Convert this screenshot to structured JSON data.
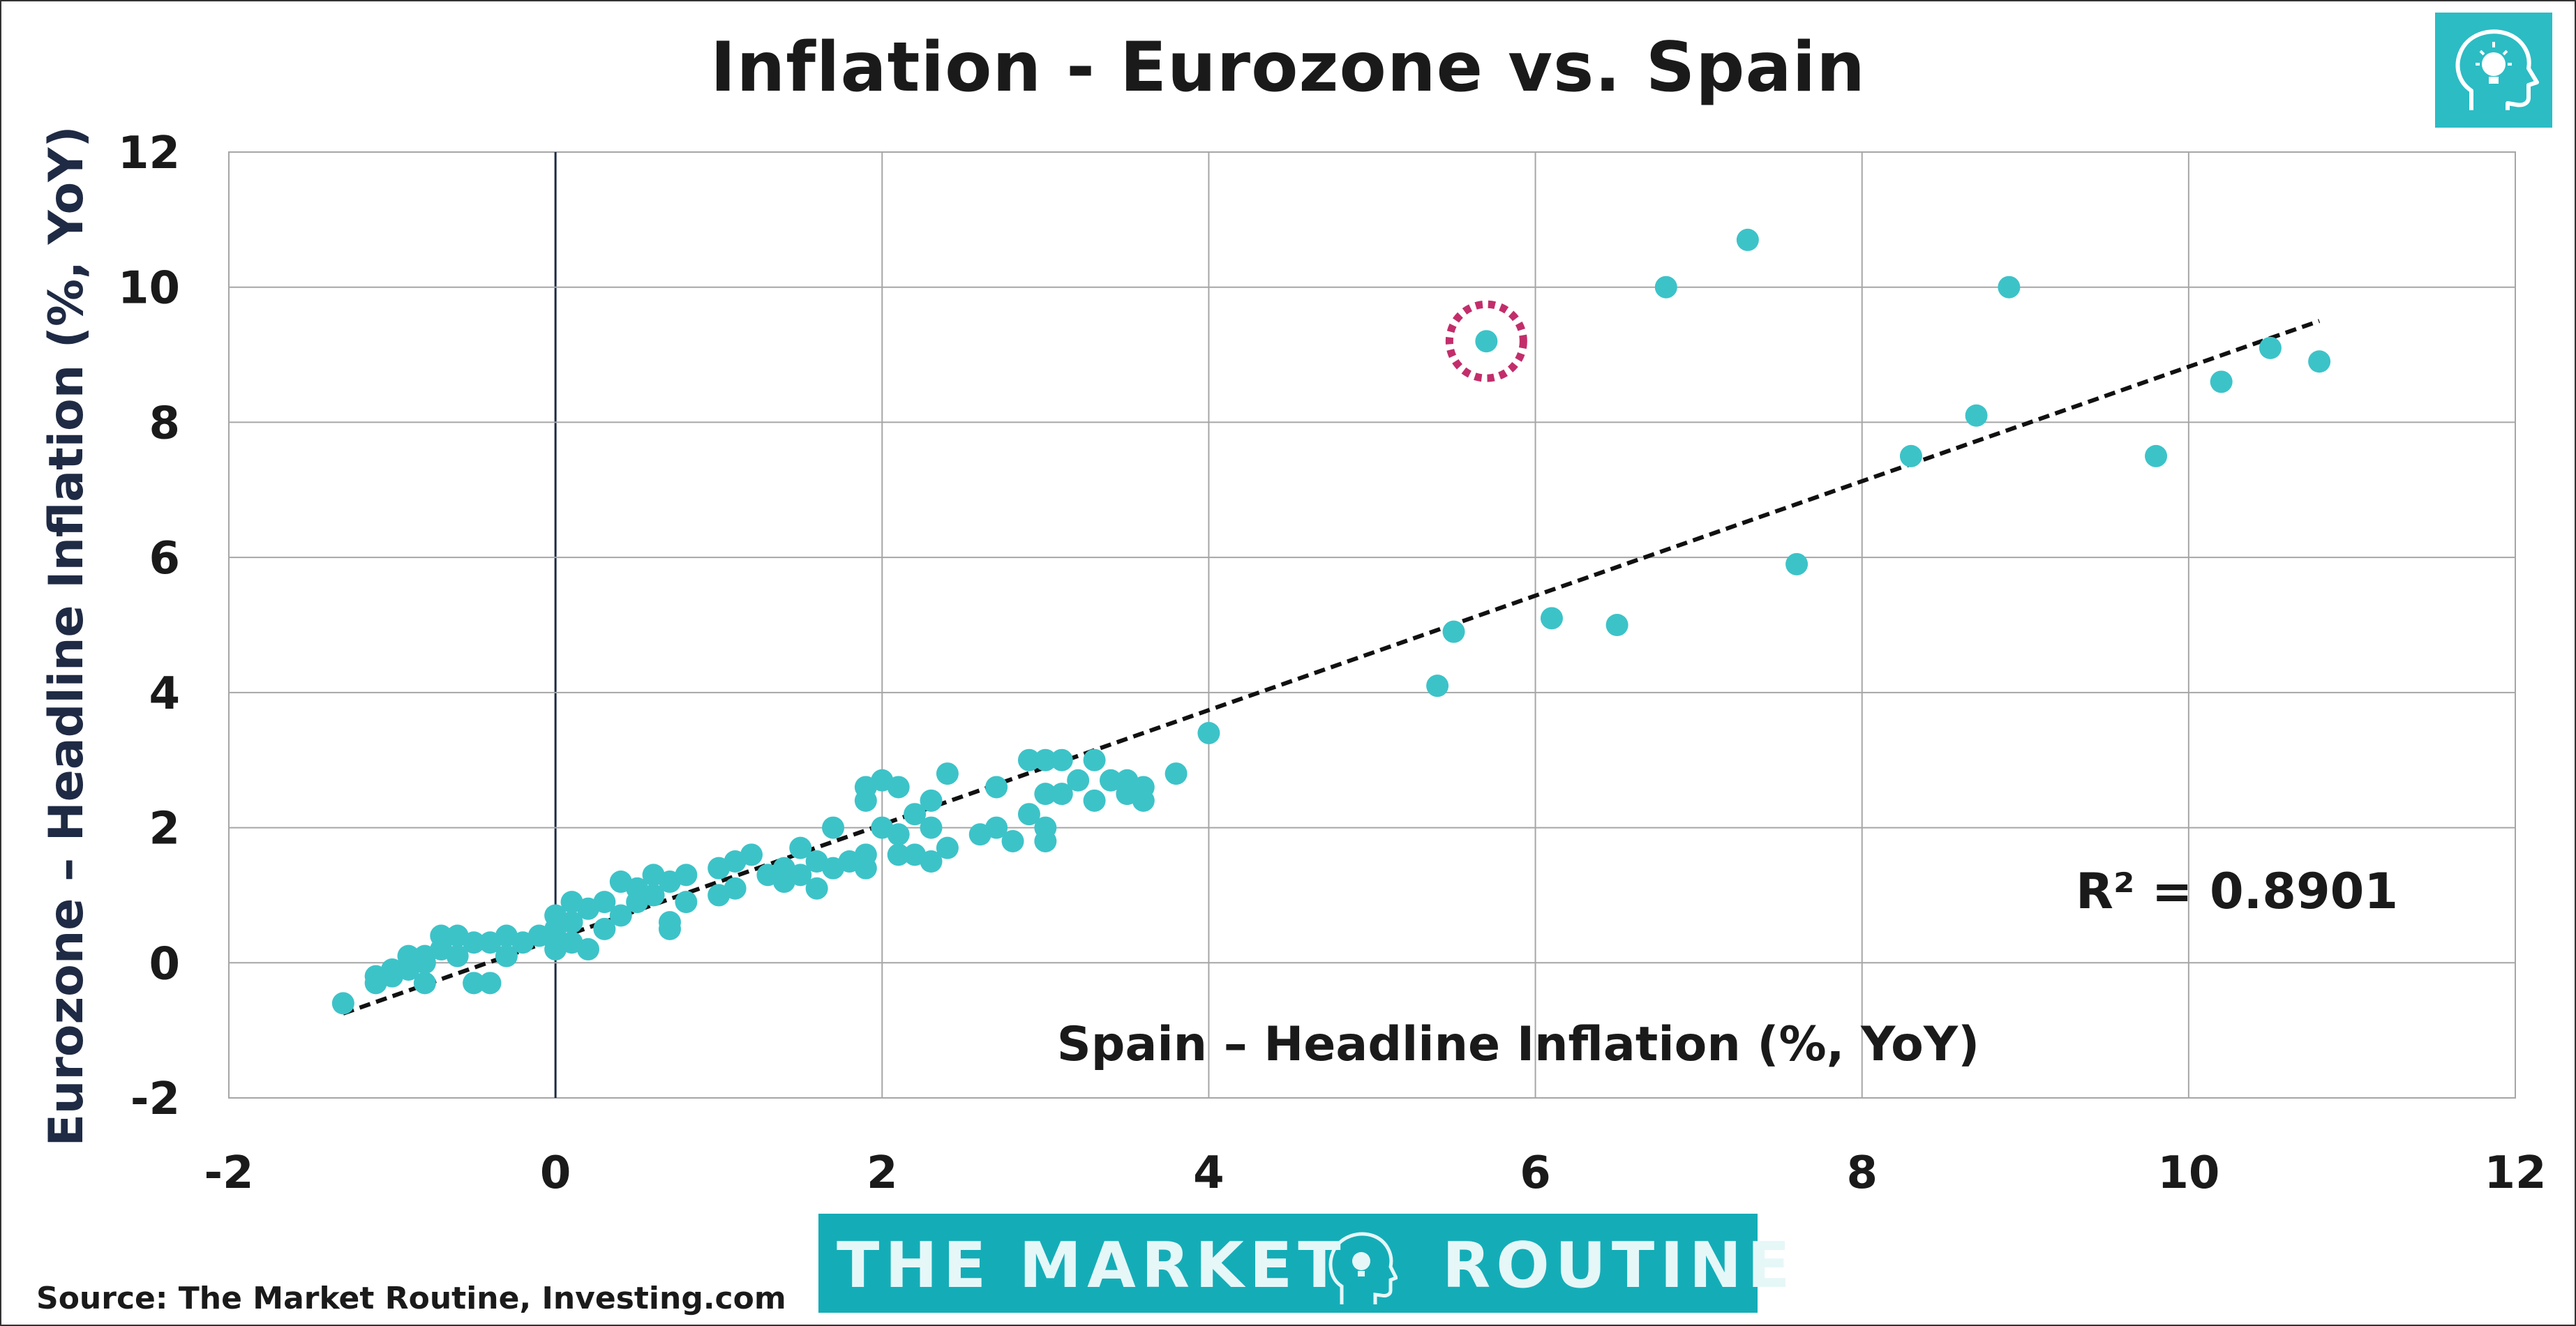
{
  "title": "Inflation - Eurozone vs. Spain",
  "source": "Source: The Market Routine, Investing.com",
  "brand": {
    "left_text": "THE MARKET",
    "right_text": "ROUTINE"
  },
  "colors": {
    "points": "#3cc3c8",
    "trendline": "#111111",
    "highlight": "#c22e6b",
    "grid": "#a6a6a6",
    "zero_axis": "#1f2a44",
    "ylabel": "#1f2a44",
    "brand": "#14adb7"
  },
  "icons": {
    "logo": "head-lightbulb-icon"
  },
  "chart_data": {
    "type": "scatter",
    "xlabel": "Spain – Headline Inflation (%, YoY)",
    "ylabel": "Eurozone – Headline Inflation (%, YoY)",
    "xlim": [
      -2,
      12
    ],
    "ylim": [
      -2,
      12
    ],
    "xticks": [
      "-2",
      "0",
      "2",
      "4",
      "6",
      "8",
      "10",
      "12"
    ],
    "yticks": [
      "-2",
      "0",
      "2",
      "4",
      "6",
      "8",
      "10",
      "12"
    ],
    "grid": true,
    "annotation": "R² = 0.8901",
    "trendline": {
      "style": "dashed",
      "from": [
        -1.3,
        -0.75
      ],
      "to": [
        10.8,
        9.5
      ]
    },
    "highlighted_point": [
      5.7,
      9.2
    ],
    "points": [
      [
        -1.3,
        -0.6
      ],
      [
        -1.1,
        -0.2
      ],
      [
        -1.1,
        -0.3
      ],
      [
        -1.0,
        -0.2
      ],
      [
        -1.0,
        -0.1
      ],
      [
        -0.9,
        0.1
      ],
      [
        -0.9,
        -0.1
      ],
      [
        -0.8,
        0.1
      ],
      [
        -0.8,
        -0.3
      ],
      [
        -0.8,
        0.0
      ],
      [
        -0.7,
        0.4
      ],
      [
        -0.7,
        0.2
      ],
      [
        -0.6,
        0.4
      ],
      [
        -0.6,
        0.1
      ],
      [
        -0.5,
        0.3
      ],
      [
        -0.5,
        -0.3
      ],
      [
        -0.4,
        0.3
      ],
      [
        -0.4,
        -0.3
      ],
      [
        -0.3,
        0.4
      ],
      [
        -0.3,
        0.1
      ],
      [
        -0.2,
        0.3
      ],
      [
        -0.1,
        0.4
      ],
      [
        0.0,
        0.7
      ],
      [
        0.0,
        0.5
      ],
      [
        0.0,
        0.3
      ],
      [
        0.0,
        0.2
      ],
      [
        0.1,
        0.9
      ],
      [
        0.1,
        0.6
      ],
      [
        0.1,
        0.3
      ],
      [
        0.2,
        0.8
      ],
      [
        0.2,
        0.2
      ],
      [
        0.3,
        0.9
      ],
      [
        0.3,
        0.5
      ],
      [
        0.4,
        1.2
      ],
      [
        0.4,
        0.7
      ],
      [
        0.5,
        1.1
      ],
      [
        0.5,
        0.9
      ],
      [
        0.6,
        1.3
      ],
      [
        0.6,
        1.0
      ],
      [
        0.7,
        1.2
      ],
      [
        0.7,
        0.6
      ],
      [
        0.7,
        0.5
      ],
      [
        0.8,
        1.3
      ],
      [
        0.8,
        0.9
      ],
      [
        1.0,
        1.4
      ],
      [
        1.0,
        1.0
      ],
      [
        1.1,
        1.5
      ],
      [
        1.1,
        1.1
      ],
      [
        1.2,
        1.6
      ],
      [
        1.3,
        1.3
      ],
      [
        1.4,
        1.4
      ],
      [
        1.4,
        1.2
      ],
      [
        1.5,
        1.7
      ],
      [
        1.5,
        1.3
      ],
      [
        1.6,
        1.5
      ],
      [
        1.6,
        1.1
      ],
      [
        1.7,
        2.0
      ],
      [
        1.7,
        1.4
      ],
      [
        1.8,
        1.5
      ],
      [
        1.9,
        2.6
      ],
      [
        1.9,
        2.4
      ],
      [
        1.9,
        1.6
      ],
      [
        1.9,
        1.4
      ],
      [
        2.0,
        2.7
      ],
      [
        2.0,
        2.0
      ],
      [
        2.1,
        2.6
      ],
      [
        2.1,
        1.9
      ],
      [
        2.1,
        1.6
      ],
      [
        2.2,
        2.2
      ],
      [
        2.2,
        1.6
      ],
      [
        2.3,
        2.4
      ],
      [
        2.3,
        2.0
      ],
      [
        2.3,
        1.5
      ],
      [
        2.4,
        2.8
      ],
      [
        2.4,
        1.7
      ],
      [
        2.6,
        1.9
      ],
      [
        2.7,
        2.6
      ],
      [
        2.7,
        2.0
      ],
      [
        2.8,
        1.8
      ],
      [
        2.9,
        3.0
      ],
      [
        2.9,
        2.2
      ],
      [
        3.0,
        3.0
      ],
      [
        3.0,
        2.5
      ],
      [
        3.0,
        2.0
      ],
      [
        3.0,
        1.8
      ],
      [
        3.1,
        3.0
      ],
      [
        3.1,
        2.5
      ],
      [
        3.2,
        2.7
      ],
      [
        3.3,
        3.0
      ],
      [
        3.3,
        2.4
      ],
      [
        3.4,
        2.7
      ],
      [
        3.5,
        2.7
      ],
      [
        3.5,
        2.5
      ],
      [
        3.6,
        2.6
      ],
      [
        3.6,
        2.4
      ],
      [
        3.8,
        2.8
      ],
      [
        4.0,
        3.4
      ],
      [
        5.4,
        4.1
      ],
      [
        5.5,
        4.9
      ],
      [
        5.7,
        9.2
      ],
      [
        6.1,
        5.1
      ],
      [
        6.5,
        5.0
      ],
      [
        6.8,
        10.0
      ],
      [
        7.3,
        10.7
      ],
      [
        7.6,
        5.9
      ],
      [
        8.3,
        7.5
      ],
      [
        8.7,
        8.1
      ],
      [
        8.9,
        10.0
      ],
      [
        9.8,
        7.5
      ],
      [
        10.2,
        8.6
      ],
      [
        10.5,
        9.1
      ],
      [
        10.8,
        8.9
      ]
    ]
  }
}
